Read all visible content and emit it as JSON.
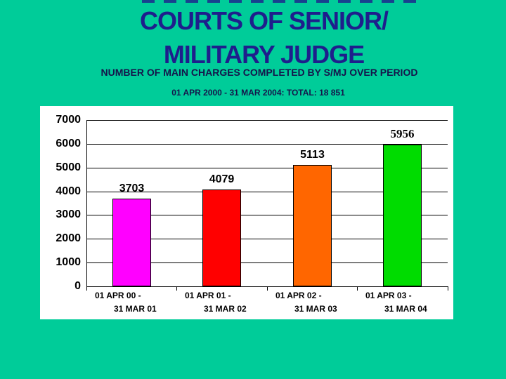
{
  "slide": {
    "title_line1": "COURTS OF SENIOR/",
    "title_line2": "MILITARY JUDGE",
    "subtitle": "NUMBER OF MAIN CHARGES COMPLETED BY S/MJ OVER PERIOD",
    "period_total": "01 APR 2000 - 31 MAR 2004: TOTAL: 18 851"
  },
  "colors": {
    "background": "#00CC99",
    "title_text": "#1E1E8C",
    "subtitle_text": "#15154B",
    "chart_background": "#FFFFFF",
    "axis": "#000000"
  },
  "chart_data": {
    "type": "bar",
    "title": "NUMBER OF MAIN CHARGES COMPLETED BY S/MJ OVER PERIOD 01 APR 2000 - 31 MAR 2004: TOTAL: 18 851",
    "total": "18 851",
    "categories": [
      {
        "line1": "01 APR 00 -",
        "line2": "31 MAR 01"
      },
      {
        "line1": "01 APR 01 -",
        "line2": "31 MAR 02"
      },
      {
        "line1": "01 APR 02 -",
        "line2": "31 MAR 03"
      },
      {
        "line1": "01 APR 03 -",
        "line2": "31 MAR 04"
      }
    ],
    "values": [
      3703,
      4079,
      5113,
      5956
    ],
    "value_labels": [
      "3703",
      "4079",
      "5113",
      "5956"
    ],
    "bar_colors": [
      "#FF00FF",
      "#FF0000",
      "#FF6600",
      "#00DC00"
    ],
    "xlabel": "",
    "ylabel": "",
    "ylim": [
      0,
      7000
    ],
    "ytick_step": 1000,
    "yticks": [
      "7000",
      "6000",
      "5000",
      "4000",
      "3000",
      "2000",
      "1000",
      "0"
    ],
    "grid": true,
    "legend": false
  }
}
